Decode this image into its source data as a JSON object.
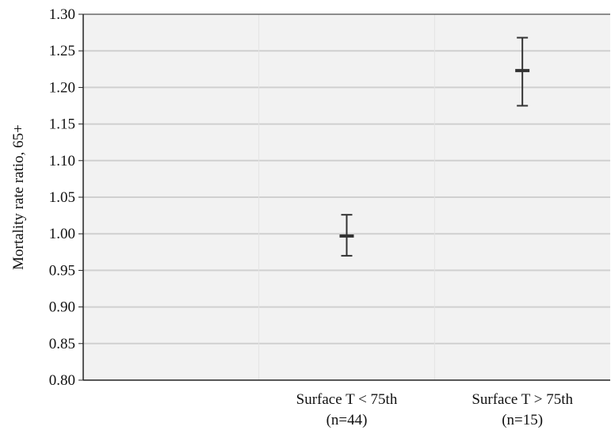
{
  "chart_data": {
    "type": "errorbar",
    "title": "",
    "xlabel": "",
    "ylabel": "Mortality rate ratio, 65+",
    "ylim": [
      0.8,
      1.3
    ],
    "yticks": [
      "0.80",
      "0.85",
      "0.90",
      "0.95",
      "1.00",
      "1.05",
      "1.10",
      "1.15",
      "1.20",
      "1.25",
      "1.30"
    ],
    "grid": true,
    "categories": [
      {
        "line1": "Surface T < 75th",
        "line2": "(n=44)"
      },
      {
        "line1": "Surface T > 75th",
        "line2": "(n=15)"
      }
    ],
    "points": [
      {
        "mean": 0.997,
        "lower": 0.97,
        "upper": 1.026
      },
      {
        "mean": 1.223,
        "lower": 1.175,
        "upper": 1.268
      }
    ],
    "colors": {
      "plot_background": "#f2f2f2",
      "grid": "#d0d0d0",
      "axis": "#222222",
      "marker": "#333333"
    }
  }
}
